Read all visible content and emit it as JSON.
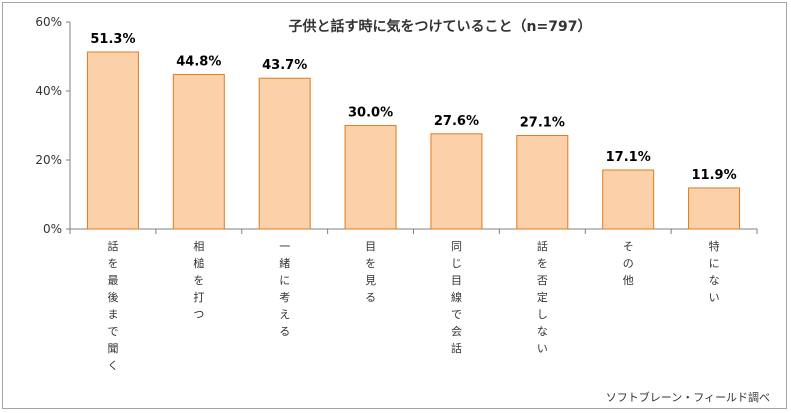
{
  "chart_data": {
    "type": "bar",
    "title": "子供と話す時に気をつけていること（n=797）",
    "categories": [
      "話を最後まで聞く",
      "相槌を打つ",
      "一緒に考える",
      "目を見る",
      "同じ目線で会話",
      "話を否定しない",
      "その他",
      "特にない"
    ],
    "values": [
      51.3,
      44.8,
      43.7,
      30.0,
      27.6,
      27.1,
      17.1,
      11.9
    ],
    "value_labels": [
      "51.3%",
      "44.8%",
      "43.7%",
      "30.0%",
      "27.6%",
      "27.1%",
      "17.1%",
      "11.9%"
    ],
    "y_ticks": [
      0,
      20,
      40,
      60
    ],
    "y_tick_labels": [
      "0%",
      "20%",
      "40%",
      "60%"
    ],
    "ylim": [
      0,
      60
    ],
    "xlabel": "",
    "ylabel": "",
    "grid": false,
    "legend": "none",
    "source_note": "ソフトブレーン・フィールド調べ",
    "colors": {
      "bar_fill": "#fcd0a8",
      "bar_stroke": "#e07c1c",
      "axis": "#808080",
      "text": "#000000"
    }
  }
}
